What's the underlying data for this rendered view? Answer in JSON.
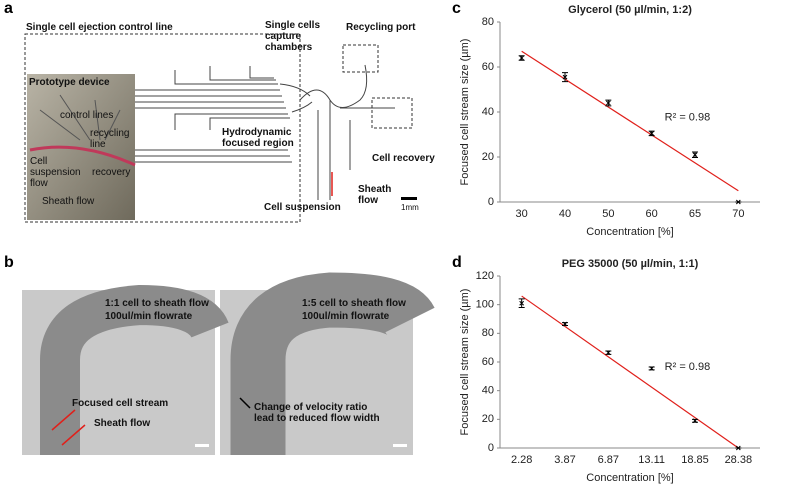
{
  "panel_labels": [
    "a",
    "b",
    "c",
    "d"
  ],
  "device_diagram": {
    "ejection_line": "Single cell ejection control line",
    "capture_chambers": "Single cells capture chambers",
    "recycling_port": "Recycling port",
    "prototype_device": "Prototype device",
    "control_lines": "control lines",
    "recycling_line": "recycling line",
    "cell_suspension_flow": "Cell suspension flow",
    "recovery": "recovery",
    "sheath_flow_photo": "Sheath flow",
    "focused_region": "Hydrodynamic focused region",
    "cell_recovery": "Cell recovery",
    "cell_suspension": "Cell suspension",
    "sheath_flow": "Sheath flow",
    "scale": "1mm"
  },
  "micrographs": [
    {
      "lines": [
        "1:1 cell to sheath flow",
        "100ul/min flowrate"
      ],
      "annotations": [
        "Focused cell stream",
        "Sheath flow"
      ]
    },
    {
      "lines": [
        "1:5 cell to sheath flow",
        "100ul/min flowrate"
      ],
      "annotations": [
        "Change of velocity ratio lead to reduced flow width"
      ]
    }
  ],
  "chart_data": [
    {
      "type": "scatter",
      "title": "Glycerol (50 µl/min, 1:2)",
      "x_label": "Concentration [%]",
      "y_label": "Focused cell stream size (µm)",
      "categories": [
        "30",
        "40",
        "50",
        "60",
        "65",
        "70"
      ],
      "values": [
        64,
        55.5,
        44,
        30.5,
        21,
        0
      ],
      "errors": [
        1,
        2,
        1.3,
        1,
        1.2,
        0
      ],
      "color": "#000000",
      "trendline": [
        67,
        5
      ],
      "trend_color": "#e0201b",
      "annotation": "R² = 0.98",
      "ylim": [
        0,
        80
      ],
      "yticks": [
        0,
        20,
        40,
        60,
        80
      ],
      "grid": false
    },
    {
      "type": "scatter",
      "title": "PEG 35000 (50 µl/min, 1:1)",
      "x_label": "Concentration [%]",
      "y_label": "Focused cell stream size (µm)",
      "categories": [
        "2.28",
        "3.87",
        "6.87",
        "13.11",
        "18.85",
        "28.38"
      ],
      "values": [
        101,
        86.5,
        66.5,
        55.5,
        19,
        0
      ],
      "errors": [
        3,
        1,
        1.2,
        1,
        1,
        0
      ],
      "color": "#000000",
      "trendline": [
        106,
        0
      ],
      "trend_color": "#e0201b",
      "annotation": "R² = 0.98",
      "ylim": [
        0,
        120
      ],
      "yticks": [
        0,
        20,
        40,
        60,
        80,
        100,
        120
      ],
      "grid": false
    }
  ]
}
